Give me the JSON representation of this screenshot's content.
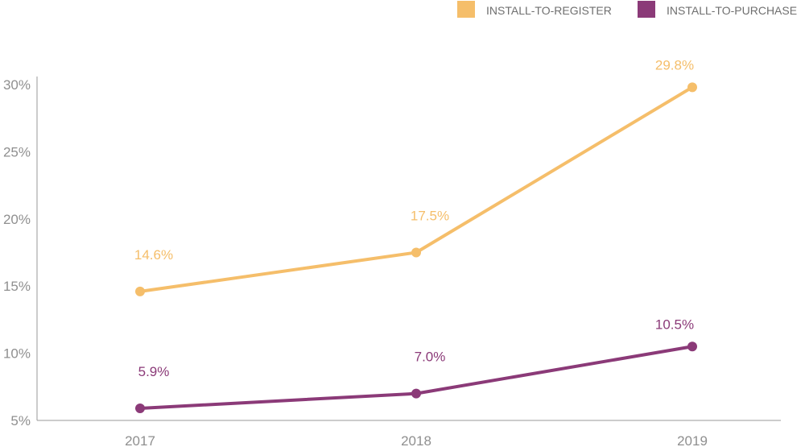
{
  "chart_data": {
    "type": "line",
    "categories": [
      "2017",
      "2018",
      "2019"
    ],
    "ylim": [
      5,
      30
    ],
    "yticks": [
      5,
      10,
      15,
      20,
      25,
      30
    ],
    "ytick_labels": [
      "5%",
      "10%",
      "15%",
      "20%",
      "25%",
      "30%"
    ],
    "grid": false,
    "legend_position": "top-right",
    "series": [
      {
        "name": "INSTALL-TO-REGISTER",
        "color": "#f5be6a",
        "values": [
          14.6,
          17.5,
          29.8
        ],
        "labels": [
          "14.6%",
          "17.5%",
          "29.8%"
        ]
      },
      {
        "name": "INSTALL-TO-PURCHASE",
        "color": "#8b3a78",
        "values": [
          5.9,
          7.0,
          10.5
        ],
        "labels": [
          "5.9%",
          "7.0%",
          "10.5%"
        ]
      }
    ]
  }
}
